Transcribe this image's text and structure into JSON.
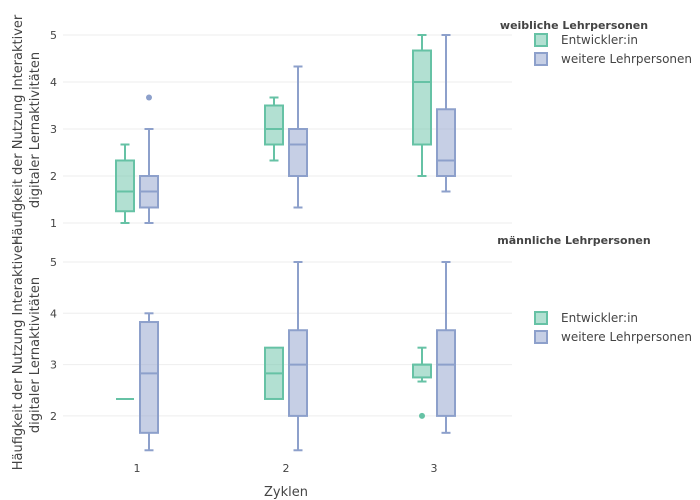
{
  "chart_data": [
    {
      "type": "box",
      "panel": "top",
      "legend_title": "weibliche Lehrpersonen",
      "ylabel": "Häufigkeit der Nutzung Interaktiver digitaler Lernaktivitäten",
      "ylim": [
        0.9,
        5.2
      ],
      "yticks": [
        1,
        2,
        3,
        4,
        5
      ],
      "categories": [
        "1",
        "2",
        "3"
      ],
      "series": [
        {
          "name": "Entwickler:in",
          "color": "#66c2a5",
          "boxes": [
            {
              "min": 1,
              "q1": 1.25,
              "median": 1.67,
              "q3": 2.33,
              "max": 2.67,
              "outliers": []
            },
            {
              "min": 2.33,
              "q1": 2.67,
              "median": 3,
              "q3": 3.5,
              "max": 3.67,
              "outliers": []
            },
            {
              "min": 2,
              "q1": 2.67,
              "median": 4,
              "q3": 4.67,
              "max": 5,
              "outliers": []
            }
          ]
        },
        {
          "name": "weitere Lehrpersonen",
          "color": "#8da0cb",
          "boxes": [
            {
              "min": 1,
              "q1": 1.33,
              "median": 1.67,
              "q3": 2,
              "max": 3,
              "outliers": [
                3.67
              ]
            },
            {
              "min": 1.33,
              "q1": 2,
              "median": 2.67,
              "q3": 3,
              "max": 4.33,
              "outliers": []
            },
            {
              "min": 1.67,
              "q1": 2,
              "median": 2.33,
              "q3": 3.42,
              "max": 5,
              "outliers": []
            }
          ]
        }
      ]
    },
    {
      "type": "box",
      "panel": "bottom",
      "legend_title": "männliche Lehrpersonen",
      "ylabel": "Häufigkeit der Nutzung Interaktiver digitaler Lernaktivitäten",
      "xlabel": "Zyklen",
      "ylim": [
        1.1,
        5.0
      ],
      "yticks": [
        2,
        3,
        4,
        5
      ],
      "categories": [
        "1",
        "2",
        "3"
      ],
      "series": [
        {
          "name": "Entwickler:in",
          "color": "#66c2a5",
          "boxes": [
            {
              "min": 2.33,
              "q1": 2.33,
              "median": 2.33,
              "q3": 2.33,
              "max": 2.33,
              "outliers": []
            },
            {
              "min": 2.33,
              "q1": 2.33,
              "median": 2.83,
              "q3": 3.33,
              "max": 3.33,
              "outliers": []
            },
            {
              "min": 2.67,
              "q1": 2.75,
              "median": 3,
              "q3": 3,
              "max": 3.33,
              "outliers": [
                2
              ]
            }
          ]
        },
        {
          "name": "weitere Lehrpersonen",
          "color": "#8da0cb",
          "boxes": [
            {
              "min": 1.33,
              "q1": 1.67,
              "median": 2.83,
              "q3": 3.83,
              "max": 4,
              "outliers": []
            },
            {
              "min": 1.33,
              "q1": 2,
              "median": 3,
              "q3": 3.67,
              "max": 5,
              "outliers": []
            },
            {
              "min": 1.67,
              "q1": 2,
              "median": 3,
              "q3": 3.67,
              "max": 5,
              "outliers": []
            }
          ]
        }
      ]
    }
  ],
  "ylabel_line1": "Häufigkeit der Nutzung Interaktiver",
  "ylabel_line2": "digitaler Lernaktivitäten",
  "xlabel": "Zyklen"
}
